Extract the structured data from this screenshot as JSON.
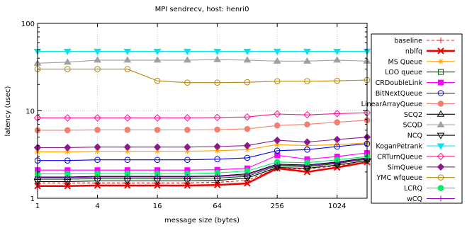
{
  "chart_data": {
    "type": "line",
    "title": "MPI sendrecv, host: henri0",
    "xlabel": "message size (bytes)",
    "ylabel": "latency (usec)",
    "x_scale": "log2",
    "y_scale": "log10",
    "xlim": [
      1,
      2048
    ],
    "ylim": [
      1,
      100
    ],
    "x_ticks": [
      1,
      4,
      16,
      64,
      256,
      1024
    ],
    "x_tick_labels": [
      "1",
      "4",
      "16",
      "64",
      "256",
      "1024"
    ],
    "y_ticks": [
      1,
      10,
      100
    ],
    "y_tick_labels": [
      "1",
      "10",
      "100"
    ],
    "grid": true,
    "legend_position": "right",
    "x": [
      1,
      2,
      4,
      8,
      16,
      32,
      64,
      128,
      256,
      512,
      1024,
      2048
    ],
    "series": [
      {
        "name": "baseline",
        "color": "#e41a1c",
        "marker": "plus",
        "dash": "4,3",
        "values": [
          1.5,
          1.5,
          1.5,
          1.5,
          1.5,
          1.5,
          1.52,
          1.6,
          2.2,
          2.15,
          2.35,
          2.6
        ]
      },
      {
        "name": "nblfq",
        "color": "#ee0000",
        "marker": "x",
        "width": 2.5,
        "values": [
          1.38,
          1.38,
          1.4,
          1.4,
          1.4,
          1.4,
          1.42,
          1.48,
          2.2,
          2.0,
          2.25,
          2.6
        ]
      },
      {
        "name": "MS Queue",
        "color": "#ffa000",
        "marker": "star",
        "values": [
          3.4,
          3.4,
          3.45,
          3.45,
          3.45,
          3.45,
          3.5,
          3.6,
          4.1,
          4.0,
          4.1,
          4.3
        ]
      },
      {
        "name": "LOO queue",
        "color": "#006400",
        "marker": "square-open",
        "values": [
          1.65,
          1.65,
          1.68,
          1.68,
          1.68,
          1.68,
          1.7,
          1.78,
          2.35,
          2.3,
          2.5,
          2.8
        ]
      },
      {
        "name": "CRDoubleLink",
        "color": "#ff00ff",
        "marker": "square",
        "values": [
          2.1,
          2.1,
          2.1,
          2.1,
          2.1,
          2.1,
          2.12,
          2.2,
          3.1,
          2.8,
          3.0,
          3.3
        ]
      },
      {
        "name": "BitNextQueue",
        "color": "#0000ee",
        "marker": "circle-open",
        "values": [
          2.7,
          2.7,
          2.75,
          2.75,
          2.75,
          2.75,
          2.8,
          2.9,
          3.5,
          3.6,
          3.9,
          4.2
        ]
      },
      {
        "name": "LinearArrayQueue",
        "color": "#f08070",
        "marker": "circle",
        "values": [
          6.0,
          6.0,
          6.05,
          6.05,
          6.05,
          6.05,
          6.1,
          6.2,
          6.8,
          7.0,
          7.4,
          7.8
        ]
      },
      {
        "name": "SCQ2",
        "color": "#000000",
        "marker": "triangle-open",
        "values": [
          1.75,
          1.75,
          1.78,
          1.78,
          1.78,
          1.78,
          1.8,
          1.9,
          2.45,
          2.4,
          2.6,
          2.9
        ]
      },
      {
        "name": "SCQD",
        "color": "#a0a0a0",
        "marker": "triangle",
        "values": [
          35,
          36,
          38,
          38,
          38,
          38,
          38.5,
          38,
          37,
          37,
          38,
          37
        ]
      },
      {
        "name": "NCQ",
        "color": "#000000",
        "marker": "triangle-down-open",
        "values": [
          1.55,
          1.55,
          1.58,
          1.58,
          1.58,
          1.58,
          1.6,
          1.7,
          2.25,
          2.2,
          2.4,
          2.7
        ]
      },
      {
        "name": "KoganPetrank",
        "color": "#00e5ee",
        "marker": "triangle-down",
        "values": [
          48,
          48,
          48,
          48,
          48,
          48,
          48,
          48,
          48,
          48,
          48,
          48
        ]
      },
      {
        "name": "CRTurnQueue",
        "color": "#ff1493",
        "marker": "diamond-open",
        "values": [
          8.3,
          8.3,
          8.3,
          8.3,
          8.3,
          8.3,
          8.4,
          8.5,
          9.2,
          9.0,
          9.3,
          9.5
        ]
      },
      {
        "name": "SimQueue",
        "color": "#8b1a8b",
        "marker": "diamond",
        "values": [
          3.8,
          3.8,
          3.85,
          3.85,
          3.85,
          3.85,
          3.9,
          4.0,
          4.6,
          4.4,
          4.7,
          5.0
        ]
      },
      {
        "name": "YMC wfqueue",
        "color": "#b8860b",
        "marker": "circle-open",
        "values": [
          30,
          30,
          30,
          30,
          22,
          21,
          21,
          21.2,
          21.8,
          21.8,
          22,
          22.5
        ]
      },
      {
        "name": "LCRQ",
        "color": "#00ee66",
        "marker": "circle",
        "values": [
          1.9,
          1.9,
          1.92,
          1.92,
          1.92,
          1.92,
          1.95,
          2.05,
          2.6,
          2.55,
          2.75,
          3.0
        ]
      },
      {
        "name": "wCQ",
        "color": "#9400d3",
        "marker": "plus",
        "values": [
          1.72,
          1.72,
          1.75,
          1.75,
          1.75,
          1.75,
          1.77,
          1.85,
          2.4,
          2.35,
          2.55,
          2.85
        ]
      }
    ]
  }
}
